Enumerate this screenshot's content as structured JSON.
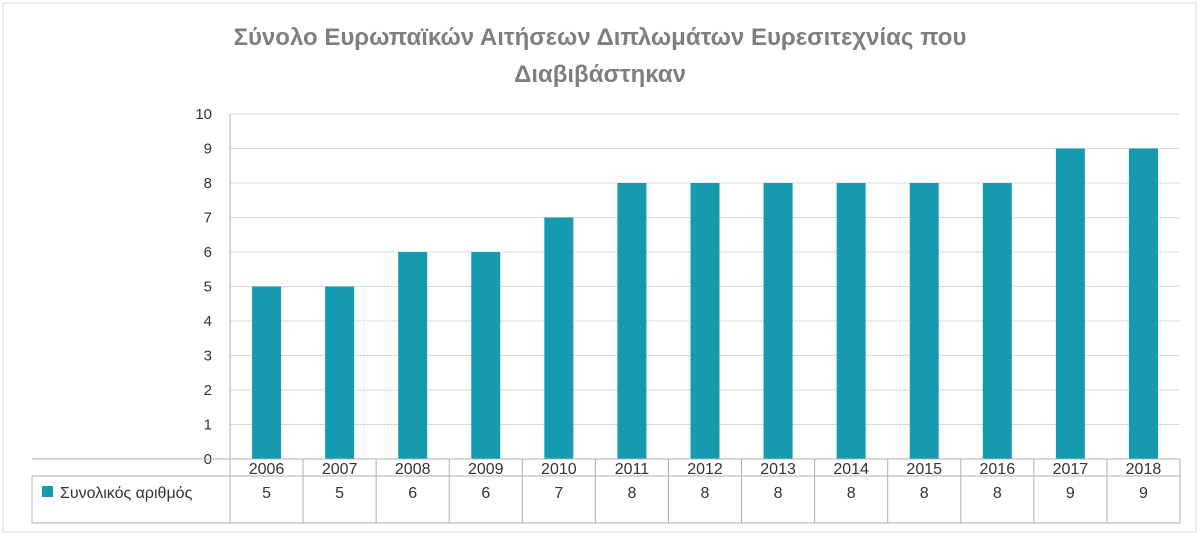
{
  "chart_data": {
    "type": "bar",
    "title_line1": "Σύνολο Ευρωπαϊκών Αιτήσεων Διπλωμάτων Ευρεσιτεχνίας που",
    "title_line2": "Διαβιβάστηκαν",
    "categories": [
      "2006",
      "2007",
      "2008",
      "2009",
      "2010",
      "2011",
      "2012",
      "2013",
      "2014",
      "2015",
      "2016",
      "2017",
      "2018"
    ],
    "series": [
      {
        "name": "Συνολικός αριθμός",
        "values": [
          5,
          5,
          6,
          6,
          7,
          8,
          8,
          8,
          8,
          8,
          8,
          9,
          9
        ]
      }
    ],
    "ylim": [
      0,
      10
    ],
    "yticks": [
      "0",
      "1",
      "2",
      "3",
      "4",
      "5",
      "6",
      "7",
      "8",
      "9",
      "10"
    ],
    "grid": true,
    "data_table": true,
    "colors": {
      "bar": "#169bae",
      "title": "#7f7f7f",
      "text": "#333333",
      "grid": "#d9d9d9",
      "axis": "#b0b0b0"
    }
  }
}
